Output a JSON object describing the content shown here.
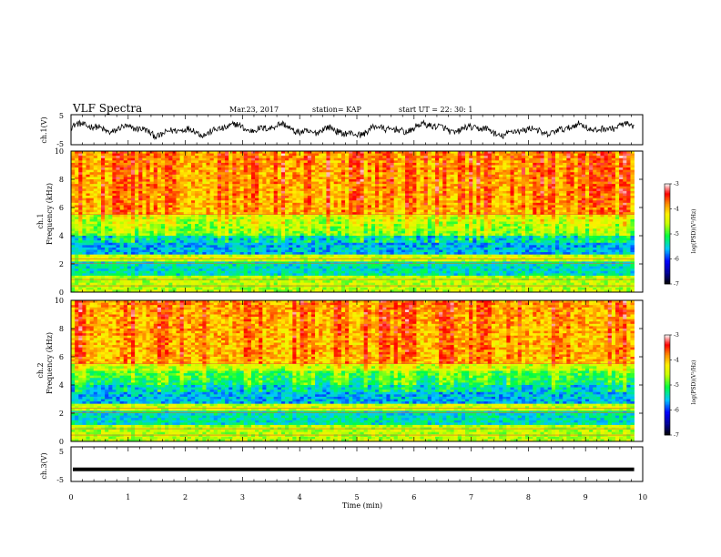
{
  "header": {
    "title": "VLF Spectra",
    "date": "Mar.23, 2017",
    "station": "station= KAP",
    "start_ut": "start  UT =   22: 30: 1"
  },
  "chart_data": [
    {
      "type": "line",
      "panel": "ch1-waveform",
      "ylabel": "ch.1(V)",
      "ylim": [
        -5,
        5
      ],
      "yticks": [
        "5",
        "-5"
      ],
      "note": "noisy waveform oscillating roughly between -3 and +3 V over the full time span"
    },
    {
      "type": "heatmap",
      "panel": "ch1-spectrogram",
      "ylabel": "ch.1\nFrequency (kHz)",
      "ylabel_line1": "ch.1",
      "ylabel_line2": "Frequency (kHz)",
      "ylim": [
        0,
        10
      ],
      "yticks": [
        "0",
        "2",
        "4",
        "6",
        "8",
        "10"
      ],
      "xlim": [
        0,
        10
      ],
      "colorbar": {
        "label": "log(PSD)(V²/Hz)",
        "min": -7,
        "max": -3,
        "ticks": [
          "-3",
          "-4",
          "-5",
          "-6",
          "-7"
        ]
      }
    },
    {
      "type": "heatmap",
      "panel": "ch2-spectrogram",
      "ylabel_line1": "ch.2",
      "ylabel_line2": "Frequency (kHz)",
      "ylim": [
        0,
        10
      ],
      "yticks": [
        "0",
        "2",
        "4",
        "6",
        "8",
        "10"
      ],
      "xlim": [
        0,
        10
      ],
      "colorbar": {
        "label": "log(PSD)(V²/Hz)",
        "min": -7,
        "max": -3,
        "ticks": [
          "-3",
          "-4",
          "-5",
          "-6",
          "-7"
        ]
      }
    },
    {
      "type": "line",
      "panel": "ch3-waveform",
      "ylabel": "ch.3(V)",
      "ylim": [
        -5,
        5
      ],
      "yticks": [
        "5",
        "-5"
      ],
      "value": -1.5
    }
  ],
  "xaxis": {
    "label": "Time (min)",
    "ticks": [
      "0",
      "1",
      "2",
      "3",
      "4",
      "5",
      "6",
      "7",
      "8",
      "9",
      "10"
    ],
    "range": [
      0,
      10
    ],
    "data_end": 9.85
  },
  "colors": {
    "frame": "#000000",
    "colormap": [
      "#000000",
      "#0000ff",
      "#00c8ff",
      "#00ff40",
      "#ffff00",
      "#ff8000",
      "#ff0000",
      "#ffffff"
    ]
  }
}
